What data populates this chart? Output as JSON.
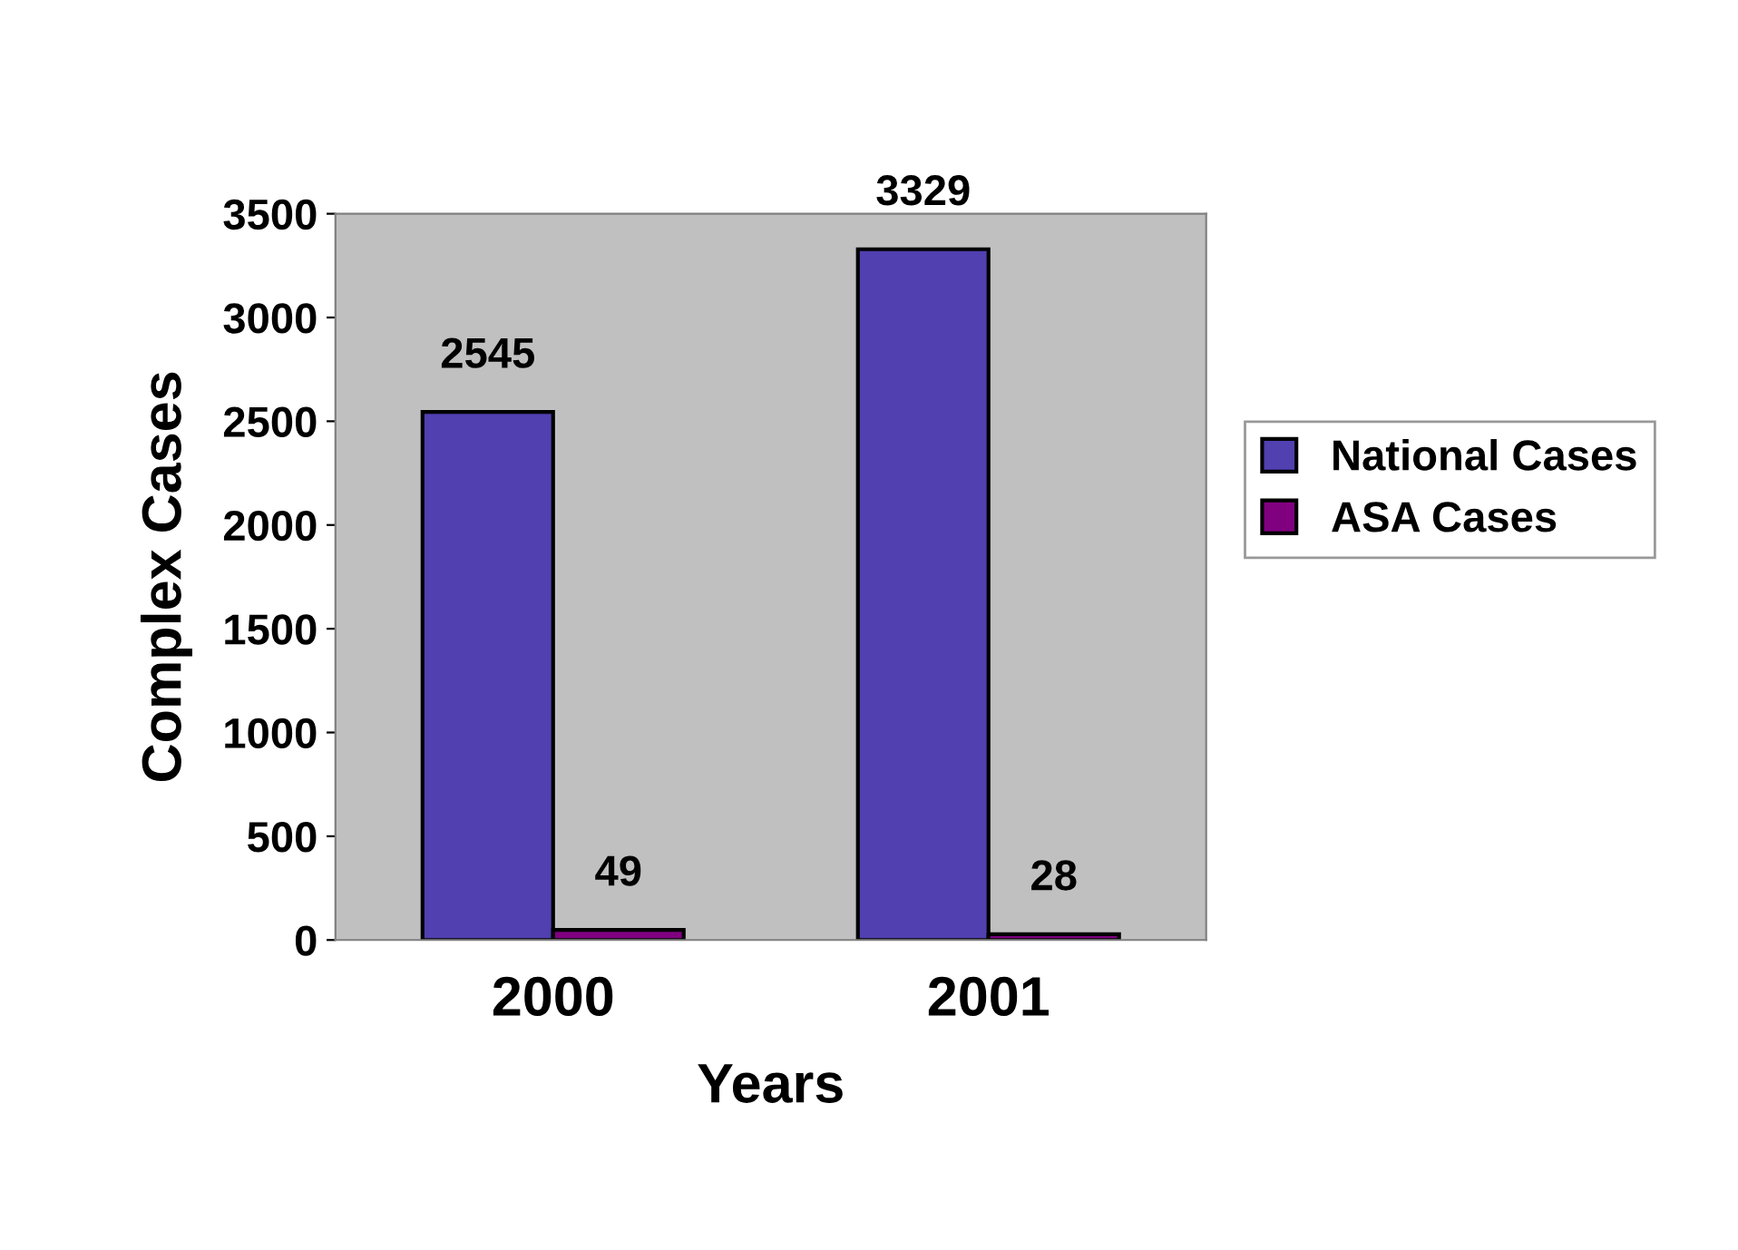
{
  "chart_data": {
    "type": "bar",
    "xlabel": "Years",
    "ylabel": "Complex Cases",
    "categories": [
      "2000",
      "2001"
    ],
    "series": [
      {
        "name": "National Cases",
        "color": "#5040b0",
        "values": [
          2545,
          3329
        ]
      },
      {
        "name": "ASA Cases",
        "color": "#800080",
        "values": [
          49,
          28
        ]
      }
    ],
    "ylim": [
      0,
      3500
    ],
    "yticks": [
      0,
      500,
      1000,
      1500,
      2000,
      2500,
      3000,
      3500
    ],
    "data_labels": true,
    "grid": false,
    "legend": "right"
  }
}
